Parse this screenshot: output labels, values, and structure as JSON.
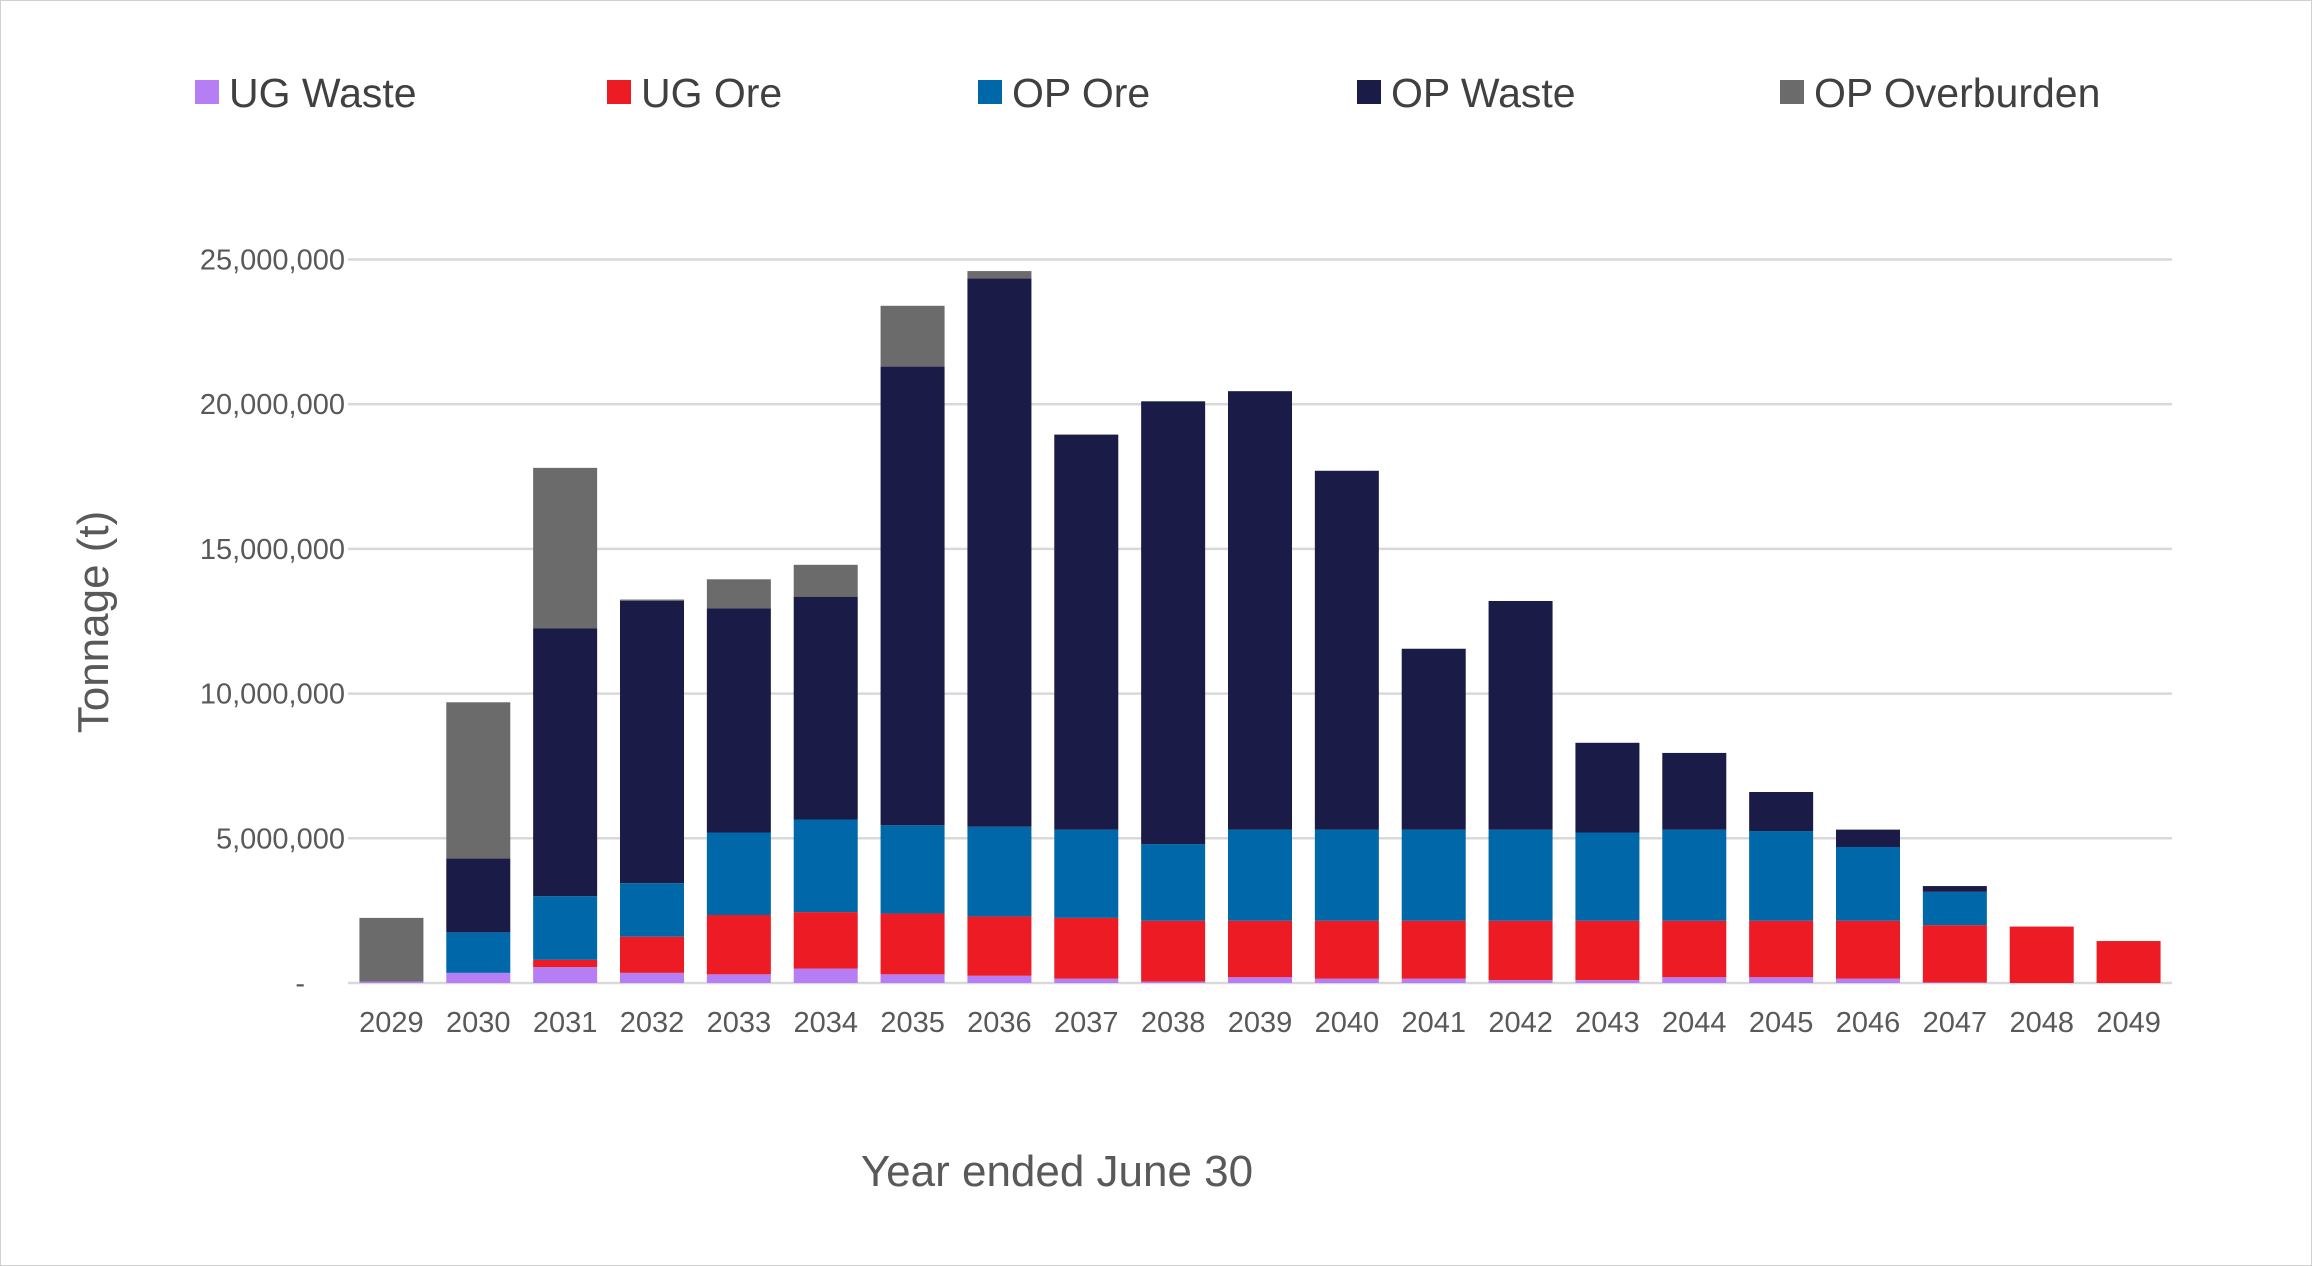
{
  "chart_data": {
    "type": "bar",
    "stacked": true,
    "title": "",
    "xlabel": "Year ended June 30",
    "ylabel": "Tonnage (t)",
    "ylim": [
      0,
      25000000
    ],
    "yticks": [
      0,
      5000000,
      10000000,
      15000000,
      20000000,
      25000000
    ],
    "ytick_labels": [
      "-",
      "5,000,000",
      "10,000,000",
      "15,000,000",
      "20,000,000",
      "25,000,000"
    ],
    "grid": true,
    "legend_placement": "top",
    "categories": [
      "2029",
      "2030",
      "2031",
      "2032",
      "2033",
      "2034",
      "2035",
      "2036",
      "2037",
      "2038",
      "2039",
      "2040",
      "2041",
      "2042",
      "2043",
      "2044",
      "2045",
      "2046",
      "2047",
      "2048",
      "2049"
    ],
    "series": [
      {
        "name": "UG Waste",
        "color": "#b57ef5",
        "values": [
          50000,
          350000,
          550000,
          350000,
          300000,
          500000,
          300000,
          250000,
          150000,
          50000,
          200000,
          150000,
          150000,
          100000,
          100000,
          200000,
          200000,
          150000,
          20000,
          0,
          0
        ]
      },
      {
        "name": "UG Ore",
        "color": "#ed1c24",
        "values": [
          0,
          0,
          250000,
          1250000,
          2050000,
          1950000,
          2100000,
          2050000,
          2100000,
          2100000,
          1950000,
          2000000,
          2000000,
          2050000,
          2050000,
          1950000,
          1950000,
          2000000,
          1980000,
          1950000,
          1450000
        ]
      },
      {
        "name": "OP  Ore",
        "color": "#0068a8",
        "values": [
          0,
          1400000,
          2200000,
          1850000,
          2850000,
          3200000,
          3050000,
          3100000,
          3050000,
          2650000,
          3150000,
          3150000,
          3150000,
          3150000,
          3050000,
          3150000,
          3100000,
          2550000,
          1150000,
          0,
          0
        ]
      },
      {
        "name": "OP  Waste",
        "color": "#1a1b47",
        "values": [
          0,
          2550000,
          9250000,
          9750000,
          7750000,
          7700000,
          15850000,
          18950000,
          13650000,
          15300000,
          15150000,
          12400000,
          6250000,
          7900000,
          3100000,
          2650000,
          1350000,
          600000,
          200000,
          0,
          0
        ]
      },
      {
        "name": "OP Overburden",
        "color": "#6b6b6b",
        "values": [
          2200000,
          5400000,
          5550000,
          50000,
          1000000,
          1100000,
          2100000,
          250000,
          0,
          0,
          0,
          0,
          0,
          0,
          0,
          0,
          0,
          0,
          0,
          0,
          0
        ]
      }
    ]
  },
  "colors": {
    "grid": "#d9d9d9",
    "text": "#595959"
  }
}
